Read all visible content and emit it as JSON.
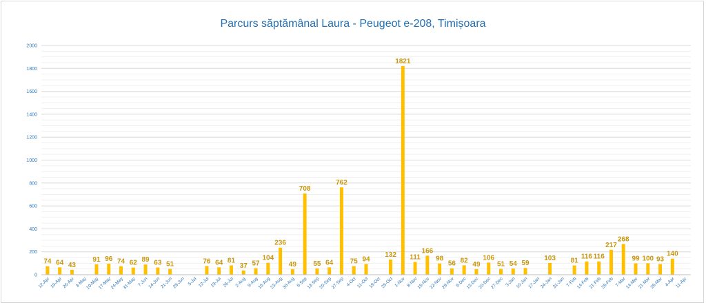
{
  "title": "Parcurs săptămânal Laura - Peugeot e-208, Timișoara",
  "chart_data": {
    "type": "bar",
    "title": "Parcurs săptămânal Laura - Peugeot e-208, Timișoara",
    "xlabel": "",
    "ylabel": "",
    "ylim": [
      0,
      2000
    ],
    "yticks": [
      0,
      200,
      400,
      600,
      800,
      1000,
      1200,
      1400,
      1600,
      1800,
      2000
    ],
    "grid": true,
    "legend": "none",
    "bar_color": "#ffc000",
    "label_color": "#c9960c",
    "categories": [
      "12-Apr",
      "19-Apr",
      "26-Apr",
      "3-May",
      "10-May",
      "17-May",
      "24-May",
      "31-May",
      "7-Jun",
      "14-Jun",
      "21-Jun",
      "28-Jun",
      "5-Jul",
      "12-Jul",
      "19-Jul",
      "26-Jul",
      "2-Aug",
      "9-Aug",
      "16-Aug",
      "23-Aug",
      "30-Aug",
      "6-Sep",
      "13-Sep",
      "20-Sep",
      "27-Sep",
      "4-Oct",
      "11-Oct",
      "18-Oct",
      "25-Oct",
      "1-Nov",
      "8-Nov",
      "15-Nov",
      "22-Nov",
      "29-Nov",
      "6-Dec",
      "13-Dec",
      "20-Dec",
      "27-Dec",
      "3-Jan",
      "10-Jan",
      "17-Jan",
      "24-Jan",
      "31-Jan",
      "7-Feb",
      "14-Feb",
      "21-Feb",
      "28-Feb",
      "7-Mar",
      "14-Mar",
      "21-Mar",
      "28-Mar",
      "4-Apr",
      "11-Apr"
    ],
    "values": [
      74,
      64,
      43,
      null,
      91,
      96,
      74,
      62,
      89,
      63,
      51,
      null,
      null,
      76,
      64,
      81,
      37,
      57,
      104,
      236,
      49,
      708,
      55,
      64,
      762,
      75,
      94,
      null,
      132,
      1821,
      111,
      166,
      98,
      56,
      82,
      49,
      106,
      51,
      54,
      59,
      null,
      103,
      null,
      81,
      116,
      116,
      217,
      268,
      99,
      100,
      93,
      140,
      null
    ]
  }
}
